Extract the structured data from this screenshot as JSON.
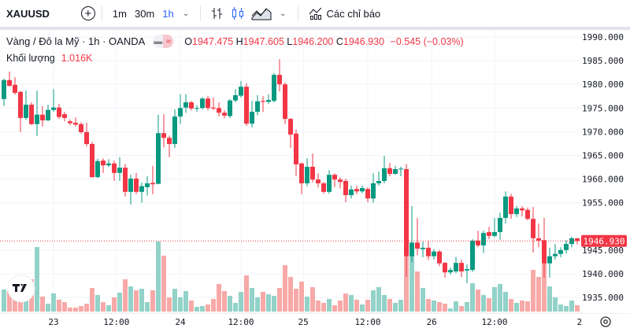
{
  "toolbar": {
    "symbol": "XAUUSD",
    "intervals": [
      "1m",
      "30m",
      "1h"
    ],
    "active_interval": "1h",
    "indicators_label": "Các chỉ báo",
    "icons": [
      "add-symbol-icon",
      "chevron-down-icon",
      "bar-chart-icon",
      "candlestick-icon",
      "area-chart-icon",
      "chevron-down-icon",
      "indicators-icon"
    ]
  },
  "legend": {
    "title": "Vàng / Đô la Mỹ · 1h · OANDA",
    "open_label": "O",
    "open": "1947.475",
    "high_label": "H",
    "high": "1947.605",
    "low_label": "L",
    "low": "1946.200",
    "close_label": "C",
    "close": "1946.930",
    "change": "−0.545 (−0.03%)",
    "volume_label": "Khối lượng",
    "volume": "1.016K"
  },
  "colors": {
    "up": "#089981",
    "down": "#f23645",
    "volume_up": "#92d2c8",
    "volume_down": "#f7a9a7"
  },
  "chart_data": {
    "type": "candlestick",
    "title": "Vàng / Đô la Mỹ · 1h · OANDA",
    "ylim": [
      1932.5,
      1991
    ],
    "y_ticks": [
      "1990.000",
      "1985.000",
      "1980.000",
      "1975.000",
      "1970.000",
      "1965.000",
      "1960.000",
      "1955.000",
      "1945.000",
      "1940.000",
      "1935.000"
    ],
    "x_ticks": [
      "23",
      "12:00",
      "24",
      "12:00",
      "25",
      "12:00",
      "26",
      "12:00",
      "2"
    ],
    "last_price": "1946.930",
    "grid": true,
    "ohlc": [
      [
        1976.9,
        1981.2,
        1975.4,
        1980.9
      ],
      [
        1980.9,
        1982.7,
        1979.5,
        1979.7
      ],
      [
        1979.9,
        1981.5,
        1977.8,
        1978.2
      ],
      [
        1978.4,
        1978.6,
        1969.9,
        1972.9
      ],
      [
        1972.9,
        1978.7,
        1972.5,
        1975.7
      ],
      [
        1975.7,
        1976.2,
        1971.4,
        1971.6
      ],
      [
        1971.6,
        1978.7,
        1969.1,
        1973.6
      ],
      [
        1973.6,
        1975.4,
        1971.1,
        1972.4
      ],
      [
        1972.4,
        1975.7,
        1972.2,
        1974.6
      ],
      [
        1974.6,
        1979.0,
        1974.2,
        1975.1
      ],
      [
        1975.1,
        1975.9,
        1972.7,
        1973.1
      ],
      [
        1973.7,
        1974.2,
        1972.2,
        1972.9
      ],
      [
        1972.2,
        1972.6,
        1971.4,
        1971.8
      ],
      [
        1971.9,
        1973.0,
        1971.1,
        1971.5
      ],
      [
        1971.6,
        1972.0,
        1969.6,
        1969.9
      ],
      [
        1969.9,
        1971.9,
        1966.9,
        1967.4
      ],
      [
        1967.4,
        1967.9,
        1960.3,
        1960.4
      ],
      [
        1960.4,
        1964.3,
        1960.2,
        1963.8
      ],
      [
        1963.9,
        1964.4,
        1961.3,
        1962.9
      ],
      [
        1962.9,
        1964.2,
        1962.5,
        1963.3
      ],
      [
        1963.3,
        1963.9,
        1959.6,
        1961.3
      ],
      [
        1961.3,
        1964.6,
        1959.6,
        1962.4
      ],
      [
        1962.4,
        1963.2,
        1956.3,
        1957.3
      ],
      [
        1957.3,
        1960.9,
        1954.6,
        1960.1
      ],
      [
        1960.1,
        1961.3,
        1956.8,
        1957.3
      ],
      [
        1957.3,
        1959.3,
        1955.0,
        1958.5
      ],
      [
        1958.3,
        1960.6,
        1956.5,
        1959.1
      ],
      [
        1959.2,
        1962.8,
        1956.8,
        1958.9
      ],
      [
        1959.0,
        1973.6,
        1958.9,
        1969.7
      ],
      [
        1969.7,
        1973.7,
        1966.7,
        1968.7
      ],
      [
        1968.7,
        1969.2,
        1964.6,
        1967.4
      ],
      [
        1967.4,
        1974.7,
        1966.6,
        1973.2
      ],
      [
        1973.2,
        1977.9,
        1971.6,
        1975.0
      ],
      [
        1975.1,
        1977.9,
        1974.0,
        1976.2
      ],
      [
        1976.2,
        1976.5,
        1974.5,
        1974.9
      ],
      [
        1974.9,
        1975.6,
        1974.2,
        1975.0
      ],
      [
        1975.0,
        1977.3,
        1974.7,
        1977.0
      ],
      [
        1977.0,
        1977.6,
        1974.5,
        1975.0
      ],
      [
        1975.1,
        1977.2,
        1974.5,
        1974.9
      ],
      [
        1975.0,
        1976.2,
        1973.2,
        1974.0
      ],
      [
        1974.0,
        1974.5,
        1972.9,
        1973.4
      ],
      [
        1973.3,
        1976.9,
        1972.9,
        1976.6
      ],
      [
        1976.6,
        1979.0,
        1976.2,
        1977.7
      ],
      [
        1977.6,
        1980.7,
        1977.2,
        1979.5
      ],
      [
        1979.5,
        1980.2,
        1971.2,
        1971.7
      ],
      [
        1971.7,
        1976.5,
        1970.9,
        1974.2
      ],
      [
        1974.2,
        1977.7,
        1973.5,
        1976.4
      ],
      [
        1976.5,
        1977.5,
        1974.2,
        1976.3
      ],
      [
        1976.3,
        1977.9,
        1975.9,
        1976.7
      ],
      [
        1976.5,
        1982.4,
        1976.2,
        1982.0
      ],
      [
        1982.0,
        1985.3,
        1978.5,
        1980.0
      ],
      [
        1980.0,
        1980.4,
        1971.6,
        1972.7
      ],
      [
        1972.7,
        1972.9,
        1966.6,
        1969.4
      ],
      [
        1969.6,
        1970.5,
        1960.6,
        1963.1
      ],
      [
        1963.3,
        1963.5,
        1956.8,
        1959.1
      ],
      [
        1959.1,
        1964.4,
        1958.5,
        1962.6
      ],
      [
        1962.6,
        1965.4,
        1959.3,
        1959.9
      ],
      [
        1959.9,
        1961.2,
        1958.2,
        1959.1
      ],
      [
        1959.1,
        1959.4,
        1956.9,
        1957.3
      ],
      [
        1957.3,
        1961.9,
        1956.9,
        1960.9
      ],
      [
        1960.9,
        1961.2,
        1958.3,
        1959.9
      ],
      [
        1959.9,
        1960.4,
        1958.0,
        1959.4
      ],
      [
        1959.6,
        1960.1,
        1955.1,
        1956.6
      ],
      [
        1956.6,
        1958.6,
        1955.9,
        1957.8
      ],
      [
        1957.9,
        1958.6,
        1956.8,
        1957.4
      ],
      [
        1957.4,
        1958.6,
        1957.0,
        1958.1
      ],
      [
        1957.9,
        1958.3,
        1955.1,
        1955.9
      ],
      [
        1955.9,
        1961.2,
        1955.0,
        1959.1
      ],
      [
        1959.1,
        1961.6,
        1958.6,
        1959.6
      ],
      [
        1959.6,
        1964.9,
        1959.1,
        1962.3
      ],
      [
        1962.3,
        1963.4,
        1960.6,
        1961.1
      ],
      [
        1961.1,
        1962.8,
        1960.9,
        1962.1
      ],
      [
        1962.1,
        1962.6,
        1960.6,
        1962.2
      ],
      [
        1962.1,
        1963.2,
        1939.4,
        1943.7
      ],
      [
        1943.7,
        1954.3,
        1942.5,
        1946.6
      ],
      [
        1946.6,
        1951.8,
        1943.9,
        1945.3
      ],
      [
        1945.2,
        1946.8,
        1943.5,
        1945.5
      ],
      [
        1945.5,
        1946.9,
        1942.9,
        1943.7
      ],
      [
        1943.7,
        1945.2,
        1943.0,
        1944.7
      ],
      [
        1944.7,
        1945.0,
        1941.6,
        1942.2
      ],
      [
        1942.3,
        1942.5,
        1939.2,
        1940.3
      ],
      [
        1940.3,
        1941.3,
        1939.8,
        1940.8
      ],
      [
        1940.5,
        1943.6,
        1940.1,
        1942.3
      ],
      [
        1942.3,
        1943.0,
        1939.3,
        1940.5
      ],
      [
        1940.7,
        1942.0,
        1938.0,
        1941.0
      ],
      [
        1940.8,
        1947.3,
        1940.4,
        1947.0
      ],
      [
        1947.0,
        1949.1,
        1945.6,
        1946.0
      ],
      [
        1946.0,
        1949.1,
        1944.4,
        1948.6
      ],
      [
        1948.8,
        1949.9,
        1947.3,
        1948.0
      ],
      [
        1948.0,
        1951.8,
        1947.7,
        1948.8
      ],
      [
        1948.8,
        1952.9,
        1947.2,
        1951.8
      ],
      [
        1951.8,
        1957.4,
        1950.6,
        1956.3
      ],
      [
        1956.3,
        1956.9,
        1951.6,
        1952.6
      ],
      [
        1952.6,
        1954.3,
        1952.0,
        1953.8
      ],
      [
        1953.8,
        1954.3,
        1952.1,
        1953.4
      ],
      [
        1953.5,
        1954.0,
        1951.3,
        1951.6
      ],
      [
        1951.6,
        1954.1,
        1944.5,
        1947.5
      ],
      [
        1947.5,
        1950.6,
        1945.6,
        1947.0
      ],
      [
        1947.1,
        1951.8,
        1939.2,
        1942.2
      ],
      [
        1942.2,
        1945.5,
        1939.2,
        1943.7
      ],
      [
        1943.7,
        1946.3,
        1943.0,
        1944.2
      ],
      [
        1944.2,
        1945.6,
        1943.5,
        1945.0
      ],
      [
        1945.0,
        1947.1,
        1944.3,
        1946.3
      ],
      [
        1946.3,
        1947.8,
        1945.6,
        1947.5
      ],
      [
        1947.475,
        1947.605,
        1946.2,
        1946.93
      ]
    ],
    "volume_k": [
      3.56,
      3.3,
      2.29,
      2.03,
      2.03,
      5.21,
      10.41,
      2.41,
      1.27,
      2.92,
      1.91,
      1.52,
      0.64,
      0.64,
      0.89,
      1.27,
      3.81,
      2.67,
      1.52,
      1.02,
      2.29,
      3.05,
      5.21,
      4.06,
      3.43,
      3.68,
      1.52,
      3.43,
      11.3,
      9.02,
      2.29,
      3.68,
      2.29,
      3.3,
      1.78,
      0.76,
      0.89,
      1.14,
      2.03,
      4.45,
      3.3,
      2.54,
      1.4,
      3.18,
      5.84,
      3.81,
      2.29,
      3.18,
      2.79,
      2.54,
      3.81,
      7.49,
      5.59,
      3.68,
      4.83,
      2.41,
      3.94,
      1.78,
      1.4,
      2.03,
      1.02,
      1.78,
      2.92,
      2.67,
      1.91,
      1.14,
      1.91,
      3.43,
      3.94,
      2.67,
      2.03,
      1.4,
      1.91,
      10.8,
      10.16,
      6.48,
      3.81,
      2.03,
      1.78,
      1.52,
      1.27,
      0.51,
      1.65,
      0.89,
      1.52,
      4.57,
      3.56,
      2.67,
      2.16,
      3.94,
      4.45,
      3.18,
      2.03,
      1.4,
      1.78,
      1.65,
      6.73,
      5.59,
      8.0,
      4.06,
      2.29,
      1.14,
      0.89,
      1.78,
      1.016
    ]
  }
}
